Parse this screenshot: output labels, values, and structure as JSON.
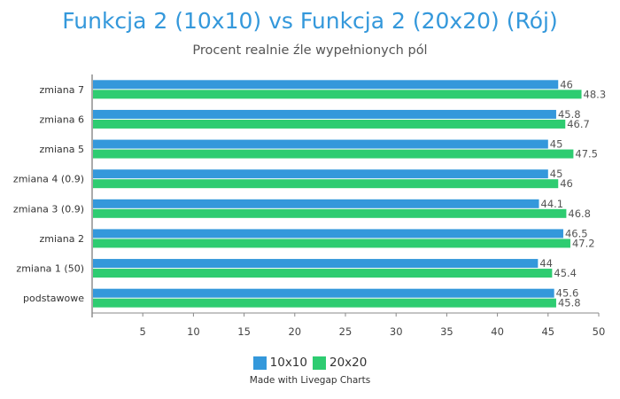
{
  "chart_data": {
    "type": "bar",
    "orientation": "horizontal",
    "title": "Funkcja 2 (10x10) vs Funkcja 2 (20x20) (Rój)",
    "subtitle": "Procent realnie źle wypełnionych pól",
    "categories": [
      "zmiana 7",
      "zmiana 6",
      "zmiana 5",
      "zmiana 4 (0.9)",
      "zmiana 3 (0.9)",
      "zmiana 2",
      "zmiana 1 (50)",
      "podstawowe"
    ],
    "series": [
      {
        "name": "10x10",
        "color": "#3498db",
        "values": [
          46,
          45.8,
          45,
          45,
          44.1,
          46.5,
          44,
          45.6
        ]
      },
      {
        "name": "20x20",
        "color": "#2ecc71",
        "values": [
          48.3,
          46.7,
          47.5,
          46,
          46.8,
          47.2,
          45.4,
          45.8
        ]
      }
    ],
    "xlim": [
      0,
      50
    ],
    "xticks": [
      5,
      10,
      15,
      20,
      25,
      30,
      35,
      40,
      45,
      50
    ],
    "grid": false,
    "legend_position": "bottom",
    "credit": "Made with Livegap Charts"
  }
}
